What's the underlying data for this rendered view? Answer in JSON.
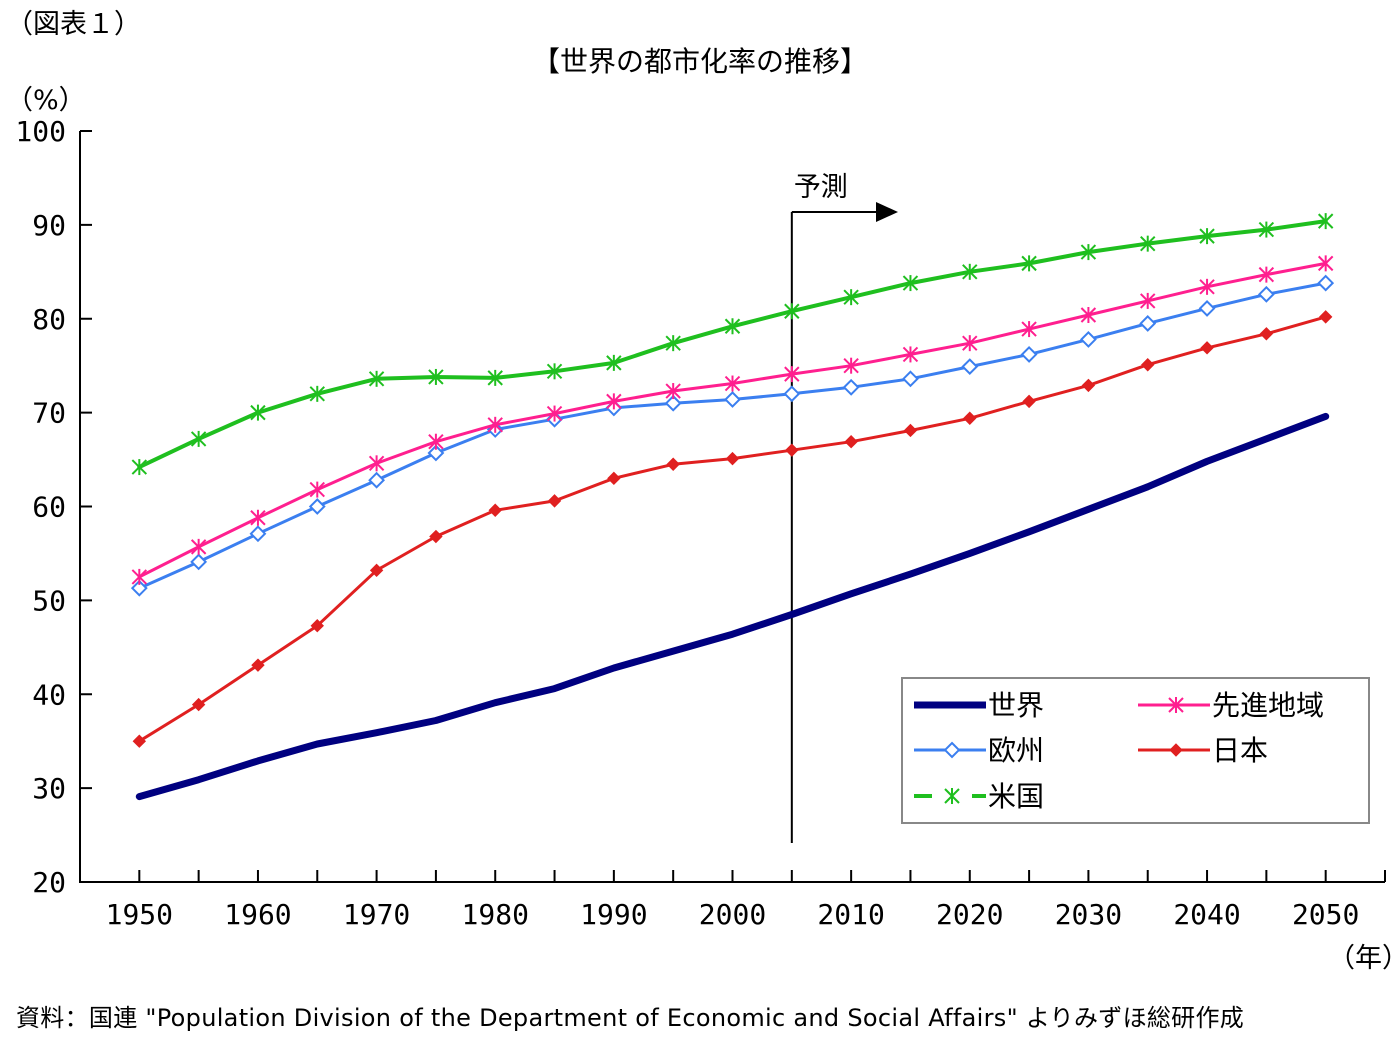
{
  "figure_label": "（図表１）",
  "source": "資料：国連 \"Population Division of the Department of Economic and Social Affairs\" よりみずほ総研作成",
  "chart_data": {
    "type": "line",
    "title": "【世界の都市化率の推移】",
    "ylabel": "（%）",
    "xlabel": "（年）",
    "ylim": [
      20,
      100
    ],
    "yticks": [
      20,
      30,
      40,
      50,
      60,
      70,
      80,
      90,
      100
    ],
    "xlim": [
      1945,
      2055
    ],
    "xticks": [
      1950,
      1960,
      1970,
      1980,
      1990,
      2000,
      2010,
      2020,
      2030,
      2040,
      2050
    ],
    "grid": false,
    "legend_position": "bottom-right",
    "annotation": {
      "label": "予測",
      "x": 2005
    },
    "x": [
      1950,
      1955,
      1960,
      1965,
      1970,
      1975,
      1980,
      1985,
      1990,
      1995,
      2000,
      2005,
      2010,
      2015,
      2020,
      2025,
      2030,
      2035,
      2040,
      2045,
      2050
    ],
    "series": [
      {
        "name": "世界",
        "color": "#000080",
        "marker": "none",
        "values": [
          29.1,
          30.9,
          32.9,
          34.7,
          35.9,
          37.2,
          39.1,
          40.6,
          42.8,
          44.6,
          46.4,
          48.5,
          50.7,
          52.8,
          55.0,
          57.3,
          59.7,
          62.1,
          64.8,
          67.2,
          69.6
        ]
      },
      {
        "name": "欧州",
        "color": "#3b7ff0",
        "marker": "diamond",
        "values": [
          51.3,
          54.1,
          57.1,
          60.0,
          62.8,
          65.7,
          68.2,
          69.3,
          70.5,
          71.0,
          71.4,
          72.0,
          72.7,
          73.6,
          74.9,
          76.2,
          77.8,
          79.5,
          81.1,
          82.6,
          83.8
        ]
      },
      {
        "name": "米国",
        "color": "#1fbf1f",
        "marker": "asterisk",
        "values": [
          64.2,
          67.2,
          70.0,
          72.0,
          73.6,
          73.8,
          73.7,
          74.4,
          75.3,
          77.4,
          79.2,
          80.8,
          82.3,
          83.8,
          85.0,
          85.9,
          87.1,
          88.0,
          88.8,
          89.5,
          90.4
        ]
      },
      {
        "name": "先進地域",
        "color": "#ff1f8f",
        "marker": "asterisk",
        "values": [
          52.5,
          55.7,
          58.8,
          61.8,
          64.6,
          66.9,
          68.7,
          69.9,
          71.2,
          72.3,
          73.1,
          74.1,
          75.0,
          76.2,
          77.4,
          78.9,
          80.4,
          81.9,
          83.4,
          84.7,
          85.9
        ]
      },
      {
        "name": "日本",
        "color": "#e02020",
        "marker": "plus",
        "values": [
          35.0,
          38.9,
          43.1,
          47.3,
          53.2,
          56.8,
          59.6,
          60.6,
          63.0,
          64.5,
          65.1,
          66.0,
          66.9,
          68.1,
          69.4,
          71.2,
          72.9,
          75.1,
          76.9,
          78.4,
          80.2
        ]
      }
    ]
  }
}
